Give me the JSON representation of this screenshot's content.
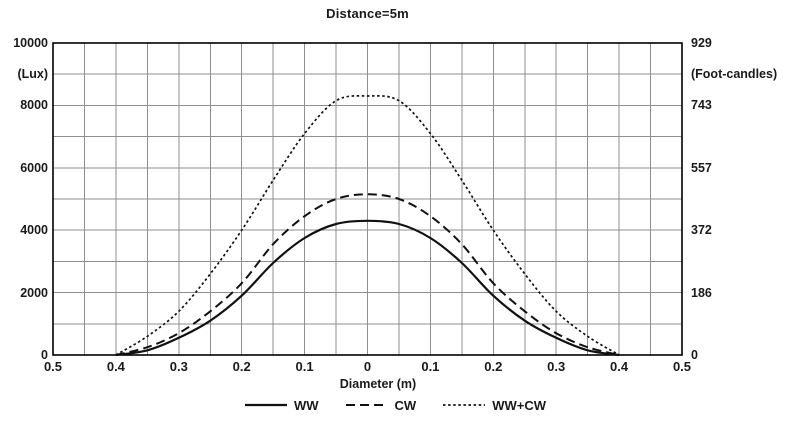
{
  "title": "Distance=5m",
  "axes": {
    "left": {
      "unit": "(Lux)",
      "ticks": [
        {
          "label": "10000",
          "lux": 10000
        },
        {
          "label": "8000",
          "lux": 8000
        },
        {
          "label": "6000",
          "lux": 6000
        },
        {
          "label": "4000",
          "lux": 4000
        },
        {
          "label": "2000",
          "lux": 2000
        },
        {
          "label": "0",
          "lux": 0
        }
      ]
    },
    "right": {
      "unit": "(Foot-candles)",
      "ticks": [
        {
          "label": "929",
          "lux": 10000
        },
        {
          "label": "743",
          "lux": 8000
        },
        {
          "label": "557",
          "lux": 6000
        },
        {
          "label": "372",
          "lux": 4000
        },
        {
          "label": "186",
          "lux": 2000
        },
        {
          "label": "0",
          "lux": 0
        }
      ]
    },
    "x": {
      "label": "Diameter (m)",
      "ticks": [
        {
          "label": "0.5",
          "x": -0.5
        },
        {
          "label": "0.4",
          "x": -0.4
        },
        {
          "label": "0.3",
          "x": -0.3
        },
        {
          "label": "0.2",
          "x": -0.2
        },
        {
          "label": "0.1",
          "x": -0.1
        },
        {
          "label": "0",
          "x": 0
        },
        {
          "label": "0.1",
          "x": 0.1
        },
        {
          "label": "0.2",
          "x": 0.2
        },
        {
          "label": "0.3",
          "x": 0.3
        },
        {
          "label": "0.4",
          "x": 0.4
        },
        {
          "label": "0.5",
          "x": 0.5
        }
      ]
    }
  },
  "colors": {
    "curve": "#111111",
    "grid": "#8f8f8f",
    "axis_border": "#000000",
    "text": "#1a1a1a",
    "background": "#ffffff"
  },
  "chart_data": {
    "type": "line",
    "title": "Distance=5m",
    "xlabel": "Diameter (m)",
    "ylabel_left": "(Lux)",
    "ylabel_right": "(Foot-candles)",
    "xlim": [
      -0.5,
      0.5
    ],
    "ylim_left": [
      0,
      10000
    ],
    "ylim_right": [
      0,
      929
    ],
    "x_grid_step": 0.05,
    "y_grid_step_lux": 1000,
    "grid": true,
    "legend_position": "bottom",
    "x": [
      -0.4,
      -0.35,
      -0.3,
      -0.25,
      -0.2,
      -0.15,
      -0.1,
      -0.05,
      0,
      0.05,
      0.1,
      0.15,
      0.2,
      0.25,
      0.3,
      0.35,
      0.4
    ],
    "series": [
      {
        "name": "WW",
        "style": "solid",
        "peak_lux": 4300,
        "values": [
          0,
          150,
          550,
          1100,
          1900,
          2950,
          3750,
          4200,
          4300,
          4200,
          3750,
          2950,
          1900,
          1100,
          550,
          150,
          0
        ]
      },
      {
        "name": "CW",
        "style": "dashed",
        "peak_lux": 5150,
        "values": [
          0,
          250,
          700,
          1400,
          2300,
          3550,
          4450,
          5000,
          5150,
          5000,
          4450,
          3550,
          2300,
          1400,
          700,
          250,
          0
        ]
      },
      {
        "name": "WW+CW",
        "style": "dotted",
        "peak_lux": 8300,
        "values": [
          0,
          600,
          1400,
          2600,
          4000,
          5600,
          7100,
          8150,
          8300,
          8150,
          7100,
          5600,
          4000,
          2600,
          1400,
          600,
          0
        ]
      }
    ]
  }
}
